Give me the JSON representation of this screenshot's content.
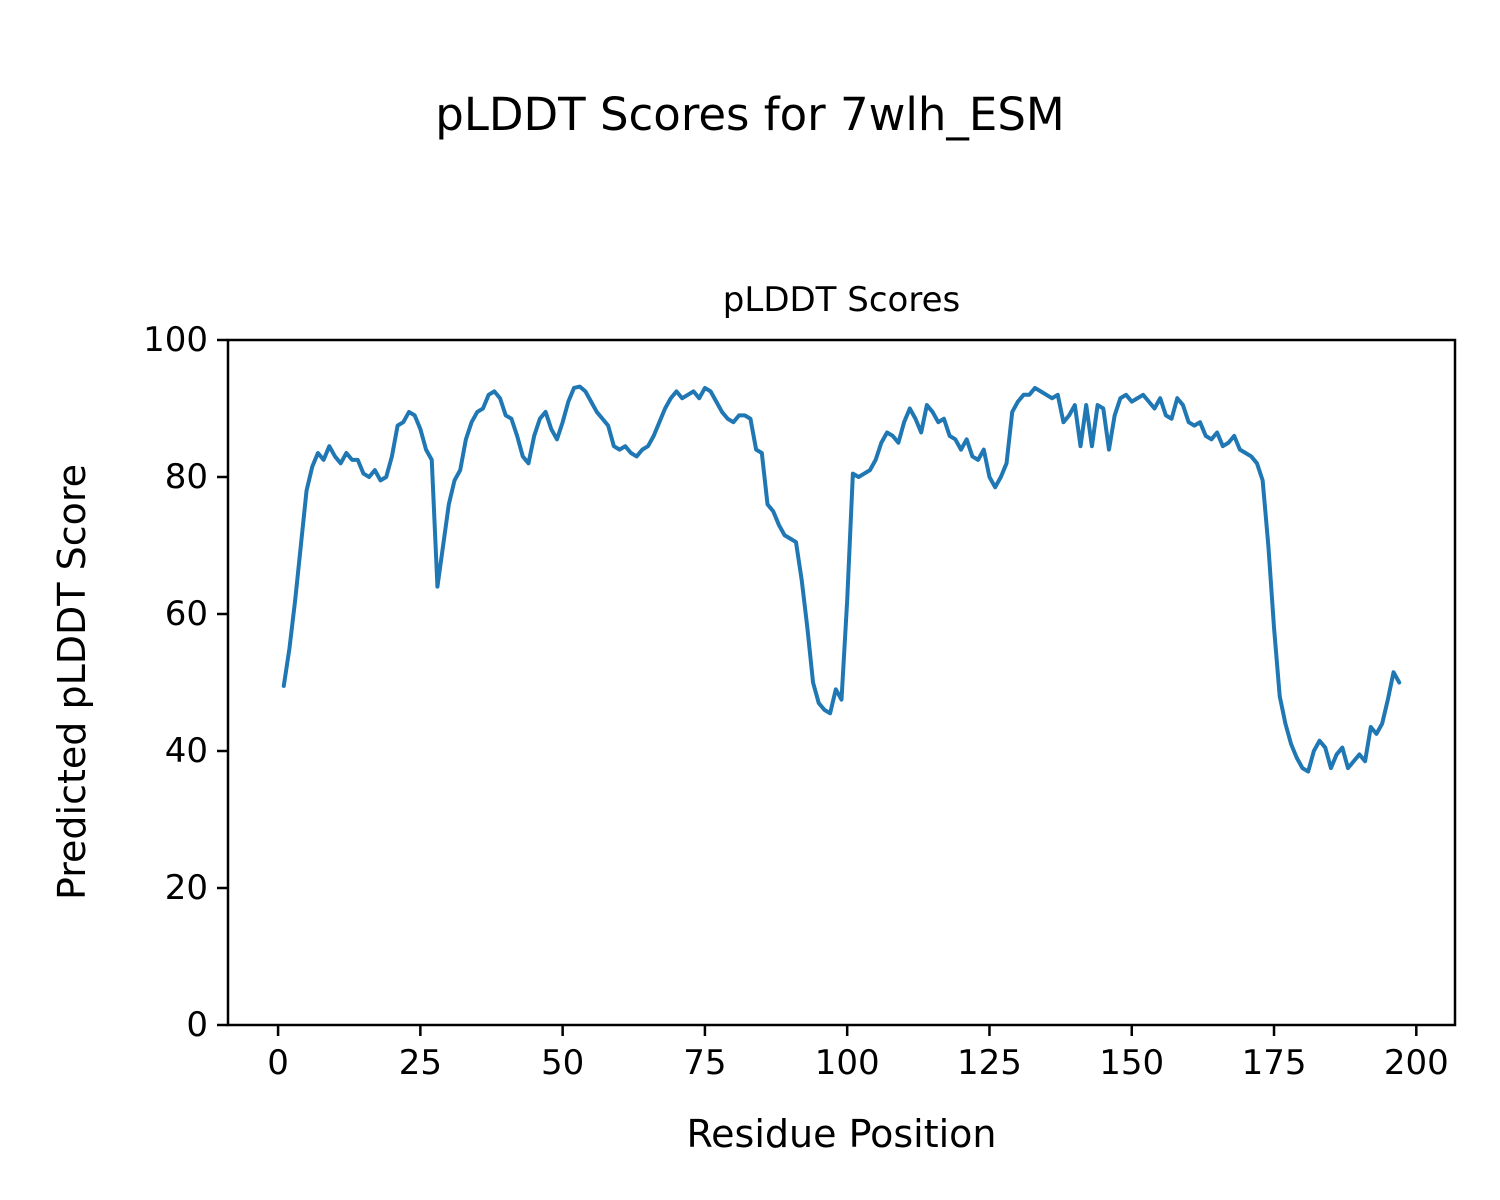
{
  "figure": {
    "suptitle": "pLDDT Scores for 7wlh_ESM"
  },
  "chart_data": {
    "type": "line",
    "title": "pLDDT Scores",
    "xlabel": "Residue Position",
    "ylabel": "Predicted pLDDT Score",
    "xlim": [
      -8.8,
      206.8
    ],
    "ylim": [
      0,
      100
    ],
    "xticks": [
      0,
      25,
      50,
      75,
      100,
      125,
      150,
      175,
      200
    ],
    "yticks": [
      0,
      20,
      40,
      60,
      80,
      100
    ],
    "grid": false,
    "legend": "none",
    "line_color": "#1f77b4",
    "series_name": "pLDDT",
    "x_start": 1,
    "x_step": 1,
    "values": [
      49.5,
      55,
      62,
      70,
      78,
      81.5,
      83.5,
      82.5,
      84.5,
      83,
      82,
      83.5,
      82.5,
      82.5,
      80.5,
      80,
      81,
      79.5,
      80,
      83,
      87.5,
      88,
      89.5,
      89,
      87,
      84,
      82.5,
      64,
      70,
      76,
      79.5,
      81,
      85.5,
      88,
      89.5,
      90,
      92,
      92.5,
      91.5,
      89,
      88.5,
      86,
      83,
      82,
      86,
      88.5,
      89.5,
      87,
      85.5,
      88,
      91,
      93,
      93.2,
      92.5,
      91,
      89.5,
      88.5,
      87.5,
      84.5,
      84,
      84.5,
      83.5,
      83,
      84,
      84.5,
      86,
      88,
      90,
      91.5,
      92.5,
      91.5,
      92,
      92.5,
      91.5,
      93,
      92.5,
      91,
      89.5,
      88.5,
      88,
      89,
      89,
      88.5,
      84,
      83.5,
      76,
      75,
      73,
      71.5,
      71,
      70.5,
      65,
      58,
      50,
      47,
      46,
      45.5,
      49,
      47.5,
      62,
      80.5,
      80,
      80.5,
      81,
      82.5,
      85,
      86.5,
      86,
      85,
      88,
      90,
      88.5,
      86.5,
      90.5,
      89.5,
      88,
      88.5,
      86,
      85.5,
      84,
      85.5,
      83,
      82.5,
      84,
      80,
      78.5,
      80,
      82,
      89.5,
      91,
      92,
      92,
      93,
      92.5,
      92,
      91.5,
      92,
      88,
      89,
      90.5,
      84.5,
      90.5,
      84.5,
      90.5,
      90,
      84,
      89,
      91.5,
      92,
      91,
      91.5,
      92,
      91,
      90,
      91.5,
      89,
      88.5,
      91.5,
      90.5,
      88,
      87.5,
      88,
      86,
      85.5,
      86.5,
      84.5,
      85,
      86,
      84,
      83.5,
      83,
      82,
      79.5,
      70,
      58,
      48,
      44,
      41,
      39,
      37.5,
      37,
      40,
      41.5,
      40.5,
      37.5,
      39.5,
      40.5,
      37.5,
      38.5,
      39.5,
      38.5,
      43.5,
      42.5,
      44,
      47.5,
      51.5,
      50
    ]
  }
}
